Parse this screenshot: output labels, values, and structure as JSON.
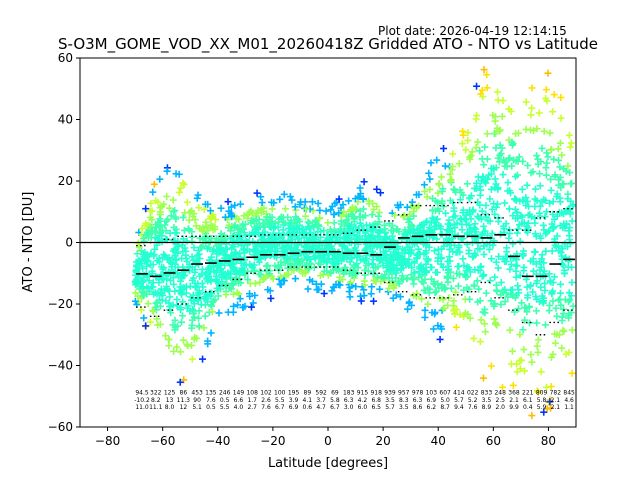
{
  "header": {
    "plot_date": "Plot date: 2026-04-19 12:14:15",
    "title": "S-O3M_GOME_VOD_XX_M01_20260418Z Gridded ATO - NTO vs Latitude"
  },
  "colors": {
    "blue": "#0033ff",
    "sky": "#00b4ff",
    "cyan": "#00e5e5",
    "aqua": "#24ffd2",
    "mint": "#3dffb0",
    "lime": "#9dff4f",
    "yellowgreen": "#c8ff2e",
    "yellow": "#ffe000",
    "orange": "#ffbb00",
    "mean": "#000000"
  },
  "chart_data": {
    "type": "scatter",
    "title": "S-O3M_GOME_VOD_XX_M01_20260418Z Gridded ATO - NTO vs Latitude",
    "xlabel": "Latitude [degrees]",
    "ylabel": "ATO - NTO [DU]",
    "xlim": [
      -90,
      90
    ],
    "ylim": [
      -60,
      60
    ],
    "xticks": [
      -80,
      -60,
      -40,
      -20,
      0,
      20,
      40,
      60,
      80
    ],
    "yticks": [
      -60,
      -40,
      -20,
      0,
      20,
      40,
      60
    ],
    "zero_line": 0,
    "marker": "+",
    "envelope": {
      "lat": [
        -70,
        -65,
        -60,
        -55,
        -50,
        -45,
        -40,
        -35,
        -30,
        -25,
        -20,
        -15,
        -10,
        -5,
        0,
        5,
        10,
        15,
        20,
        25,
        30,
        35,
        40,
        45,
        50,
        55,
        60,
        65,
        70,
        75,
        80,
        85,
        89
      ],
      "low": [
        -20,
        -30,
        -42,
        -48,
        -45,
        -38,
        -28,
        -24,
        -22,
        -20,
        -18,
        -16,
        -16,
        -16,
        -17,
        -18,
        -20,
        -20,
        -20,
        -22,
        -24,
        -28,
        -32,
        -30,
        -35,
        -45,
        -48,
        -52,
        -55,
        -58,
        -55,
        -50,
        -45
      ],
      "high": [
        0,
        15,
        25,
        28,
        22,
        15,
        12,
        14,
        16,
        17,
        17,
        17,
        16,
        15,
        12,
        15,
        20,
        20,
        16,
        14,
        18,
        25,
        30,
        35,
        40,
        55,
        60,
        58,
        58,
        58,
        55,
        50,
        40
      ]
    },
    "series_mean": {
      "name": "mean",
      "lat": [
        -67.5,
        -62.5,
        -57.5,
        -52.5,
        -47.5,
        -42.5,
        -37.5,
        -32.5,
        -27.5,
        -22.5,
        -17.5,
        -12.5,
        -7.5,
        -2.5,
        2.5,
        7.5,
        12.5,
        17.5,
        22.5,
        27.5,
        32.5,
        37.5,
        42.5,
        47.5,
        52.5,
        57.5,
        62.5,
        67.5,
        72.5,
        77.5,
        82.5,
        87.5
      ],
      "values": [
        -10.2,
        -11.0,
        -9.9,
        -9.0,
        -7.0,
        -6.7,
        -6.0,
        -5.5,
        -4.8,
        -4.0,
        -4.0,
        -3.5,
        -3.0,
        -3.0,
        -3.0,
        -3.5,
        -3.5,
        -4.0,
        -1.5,
        1.5,
        2.0,
        2.5,
        2.5,
        2.0,
        2.0,
        1.5,
        2.5,
        -4.5,
        -11.0,
        -11.0,
        -7.0,
        -5.5
      ]
    },
    "series_sd_upper": {
      "name": "mean + sd",
      "lat": [
        -67.5,
        -62.5,
        -57.5,
        -52.5,
        -47.5,
        -42.5,
        -37.5,
        -32.5,
        -27.5,
        -22.5,
        -17.5,
        -12.5,
        -7.5,
        -2.5,
        2.5,
        7.5,
        12.5,
        17.5,
        22.5,
        27.5,
        32.5,
        37.5,
        42.5,
        47.5,
        52.5,
        57.5,
        62.5,
        67.5,
        72.5,
        77.5,
        82.5,
        87.5
      ],
      "values": [
        -1,
        0,
        1,
        2,
        2,
        2,
        2,
        2,
        2,
        2.5,
        2.5,
        2.5,
        2.5,
        2.5,
        2.5,
        3,
        4,
        5,
        7,
        9,
        12,
        12,
        12,
        13,
        13,
        9,
        8,
        4,
        4,
        8,
        10,
        11
      ]
    },
    "series_sd_lower": {
      "name": "mean - sd",
      "lat": [
        -67.5,
        -62.5,
        -57.5,
        -52.5,
        -47.5,
        -42.5,
        -37.5,
        -32.5,
        -27.5,
        -22.5,
        -17.5,
        -12.5,
        -7.5,
        -2.5,
        2.5,
        7.5,
        12.5,
        17.5,
        22.5,
        27.5,
        32.5,
        37.5,
        42.5,
        47.5,
        52.5,
        57.5,
        62.5,
        67.5,
        72.5,
        77.5,
        82.5,
        87.5
      ],
      "values": [
        -21,
        -24,
        -22,
        -20,
        -18,
        -16,
        -14,
        -12,
        -10,
        -9,
        -9,
        -8,
        -8,
        -8,
        -8,
        -9,
        -10,
        -10,
        -13,
        -16,
        -17,
        -18,
        -18,
        -17,
        -16,
        -13,
        -18,
        -22,
        -26,
        -30,
        -26,
        -22
      ]
    },
    "stats_table": {
      "lat": [
        -67.5,
        -62.5,
        -57.5,
        -52.5,
        -47.5,
        -42.5,
        -37.5,
        -32.5,
        -27.5,
        -22.5,
        -17.5,
        -12.5,
        -7.5,
        -2.5,
        2.5,
        7.5,
        12.5,
        17.5,
        22.5,
        27.5,
        32.5,
        37.5,
        42.5,
        47.5,
        52.5,
        57.5,
        62.5,
        67.5,
        72.5,
        77.5,
        82.5,
        87.5
      ],
      "row1": [
        "94.5",
        "322",
        "125",
        "86",
        "453",
        "135",
        "246",
        "149",
        "108",
        "102",
        "100",
        "195",
        "89",
        "592",
        "69",
        "183",
        "915",
        "918",
        "939",
        "957",
        "978",
        "103",
        "607",
        "414",
        "022",
        "833",
        "248",
        "368",
        "221",
        "809",
        "782",
        "845"
      ],
      "row2": [
        "-10.2",
        "8.2",
        "13",
        "11.3",
        "90",
        "7.6",
        "0.5",
        "6.6",
        "1.7",
        "2.6",
        "5.5",
        "3.9",
        "4.1",
        "3.7",
        "5.8",
        "6.3",
        "4.2",
        "6.8",
        "3.5",
        "8.3",
        "6.3",
        "6.9",
        "5.0",
        "5.7",
        "5.2",
        "3.5",
        "2.5",
        "2.1",
        "6.1",
        "5.8",
        "2.1",
        "4.6"
      ],
      "row3": [
        "11.0",
        "11.1",
        "8.0",
        "12",
        "5.1",
        "0.5",
        "5.5",
        "4.0",
        "2.7",
        "7.6",
        "6.7",
        "6.9",
        "0.6",
        "4.7",
        "6.7",
        "3.0",
        "6.0",
        "6.5",
        "5.7",
        "3.5",
        "8.6",
        "6.2",
        "8.7",
        "9.4",
        "7.6",
        "8.9",
        "2.0",
        "9.9",
        "0.4",
        "5.9",
        "2.1",
        "1.1"
      ]
    }
  }
}
